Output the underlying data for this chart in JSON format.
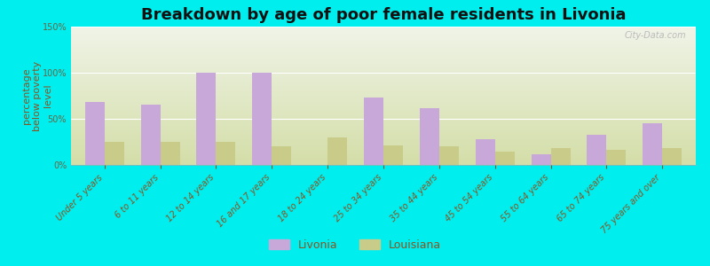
{
  "title": "Breakdown by age of poor female residents in Livonia",
  "ylabel": "percentage\nbelow poverty\nlevel",
  "categories": [
    "Under 5 years",
    "6 to 11 years",
    "12 to 14 years",
    "16 and 17 years",
    "18 to 24 years",
    "25 to 34 years",
    "35 to 44 years",
    "45 to 54 years",
    "55 to 64 years",
    "65 to 74 years",
    "75 years and over"
  ],
  "livonia_values": [
    68,
    65,
    100,
    100,
    0,
    73,
    62,
    28,
    12,
    33,
    45
  ],
  "louisiana_values": [
    25,
    25,
    25,
    20,
    30,
    21,
    20,
    14,
    18,
    16,
    18
  ],
  "livonia_color": "#c8a8d8",
  "louisiana_color": "#c8cc88",
  "background_color": "#00eeee",
  "plot_bg_color": "#e8eedd",
  "ylim": [
    0,
    150
  ],
  "yticks": [
    0,
    50,
    100,
    150
  ],
  "ytick_labels": [
    "0%",
    "50%",
    "100%",
    "150%"
  ],
  "bar_width": 0.35,
  "title_fontsize": 13,
  "ylabel_fontsize": 8,
  "tick_fontsize": 7,
  "legend_fontsize": 9,
  "watermark": "City-Data.com"
}
